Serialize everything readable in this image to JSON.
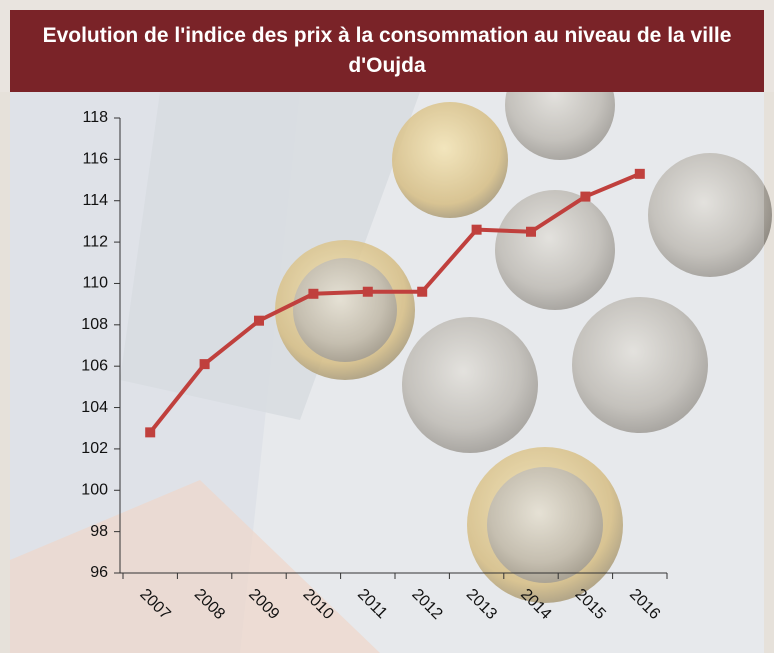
{
  "chart_data": {
    "type": "line",
    "title": "Evolution de l'indice des prix à la consommation au niveau de la ville d'Oujda",
    "categories": [
      "2007",
      "2008",
      "2009",
      "2010",
      "2011",
      "2012",
      "2013",
      "2014",
      "2015",
      "2016"
    ],
    "values": [
      102.8,
      106.1,
      108.2,
      109.5,
      109.6,
      109.6,
      112.6,
      112.5,
      114.2,
      115.3
    ],
    "color": "#c0403d",
    "ylim": [
      96,
      118
    ],
    "yticks": [
      96,
      98,
      100,
      102,
      104,
      106,
      108,
      110,
      112,
      114,
      116,
      118
    ]
  }
}
